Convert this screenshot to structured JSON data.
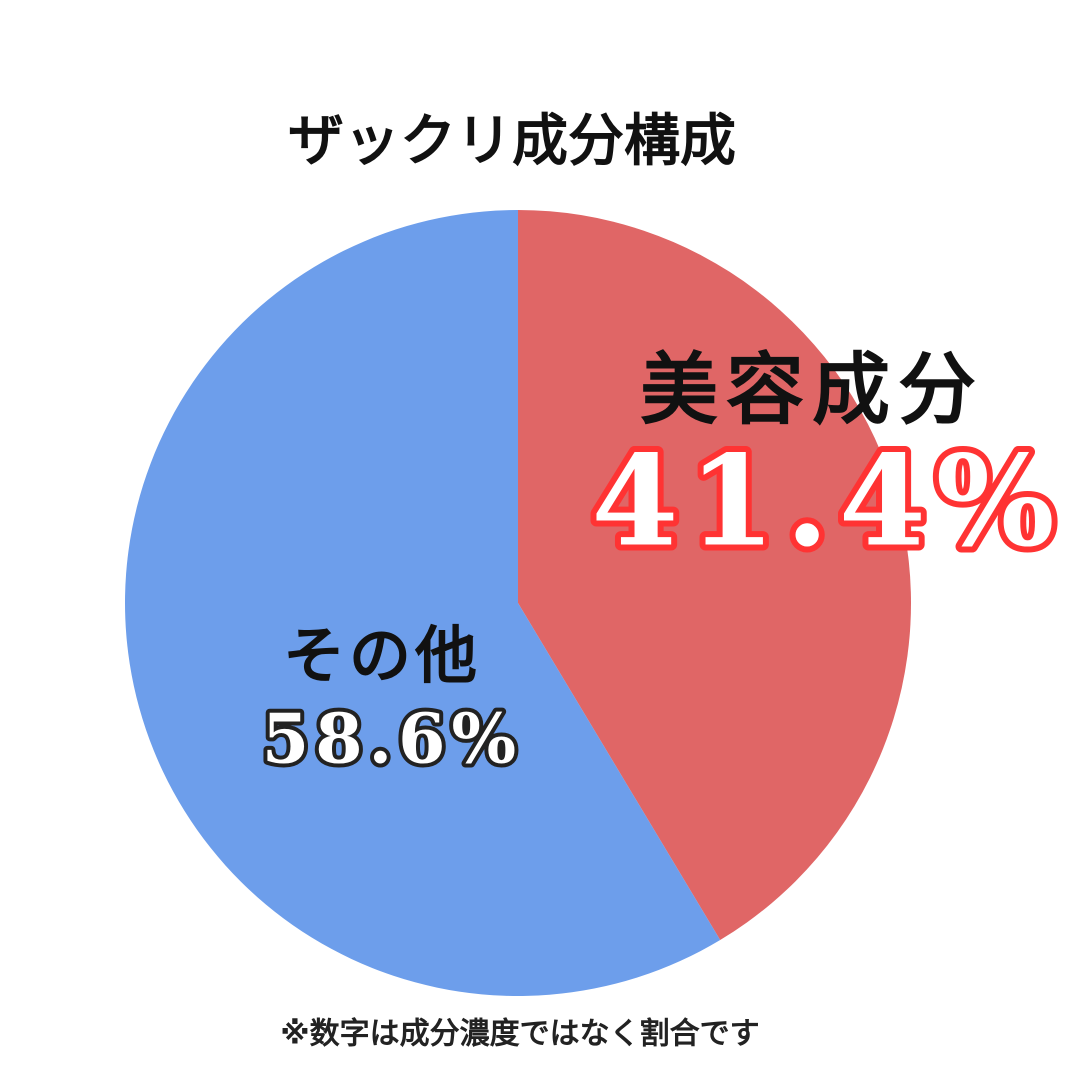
{
  "chart_data": {
    "type": "pie",
    "title": "ザックリ成分構成",
    "categories": [
      "美容成分",
      "その他"
    ],
    "values": [
      41.4,
      58.6
    ],
    "value_labels": [
      "41.4%",
      "58.6%"
    ],
    "colors": [
      "#e06666",
      "#6d9eeb"
    ],
    "note": "※数字は成分濃度ではなく割合です"
  }
}
